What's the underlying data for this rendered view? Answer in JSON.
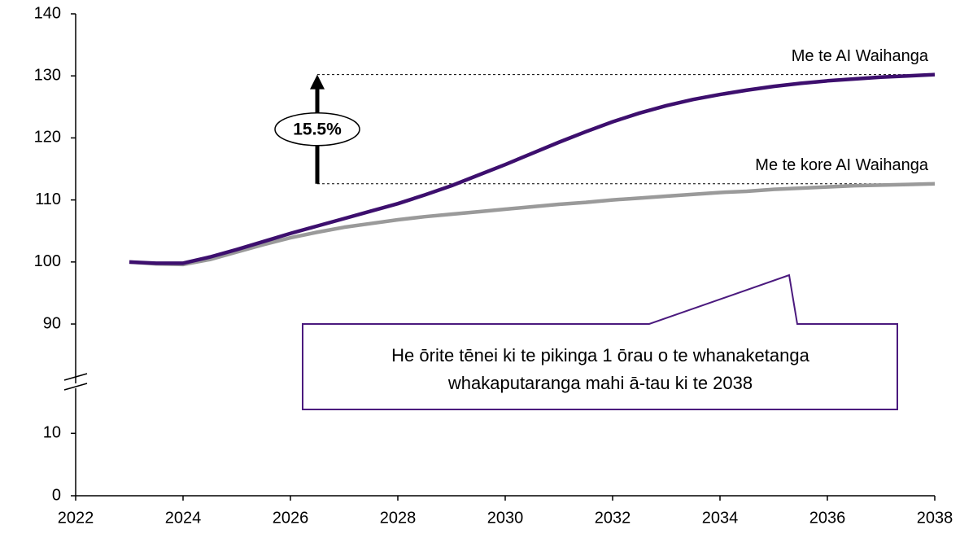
{
  "chart_data": {
    "type": "line",
    "x": [
      2023,
      2023.5,
      2024,
      2024.5,
      2025,
      2025.5,
      2026,
      2026.5,
      2027,
      2027.5,
      2028,
      2028.5,
      2029,
      2029.5,
      2030,
      2030.5,
      2031,
      2031.5,
      2032,
      2032.5,
      2033,
      2033.5,
      2034,
      2034.5,
      2035,
      2035.5,
      2036,
      2036.5,
      2037,
      2037.5,
      2038
    ],
    "series": [
      {
        "name": "Me te kore AI Waihanga",
        "color": "#9a9a9a",
        "values": [
          100,
          99.7,
          99.6,
          100.4,
          101.6,
          102.8,
          103.9,
          104.8,
          105.6,
          106.2,
          106.8,
          107.3,
          107.7,
          108.1,
          108.5,
          108.9,
          109.3,
          109.6,
          110,
          110.3,
          110.6,
          110.9,
          111.2,
          111.4,
          111.7,
          111.9,
          112.1,
          112.3,
          112.4,
          112.5,
          112.6
        ]
      },
      {
        "name": "Me te AI Waihanga",
        "color": "#3d0f6e",
        "values": [
          100,
          99.8,
          99.8,
          100.8,
          102,
          103.3,
          104.6,
          105.8,
          107,
          108.2,
          109.4,
          110.8,
          112.3,
          114,
          115.7,
          117.5,
          119.3,
          121,
          122.6,
          124,
          125.2,
          126.2,
          127,
          127.7,
          128.3,
          128.8,
          129.2,
          129.5,
          129.8,
          130,
          130.2
        ]
      }
    ],
    "xlim": [
      2022,
      2038
    ],
    "xticks": [
      2022,
      2024,
      2026,
      2028,
      2030,
      2032,
      2034,
      2036,
      2038
    ],
    "ylim": [
      0,
      140
    ],
    "yticks": [
      0,
      10,
      90,
      100,
      110,
      120,
      130,
      140
    ],
    "ybreak": [
      18,
      82
    ],
    "annotations": [
      "15.5%",
      "He ōrite tēnei ki te pikinga 1 ōrau o te whanaketanga",
      "whakaputaranga mahi ā-tau ki te 2038"
    ]
  }
}
